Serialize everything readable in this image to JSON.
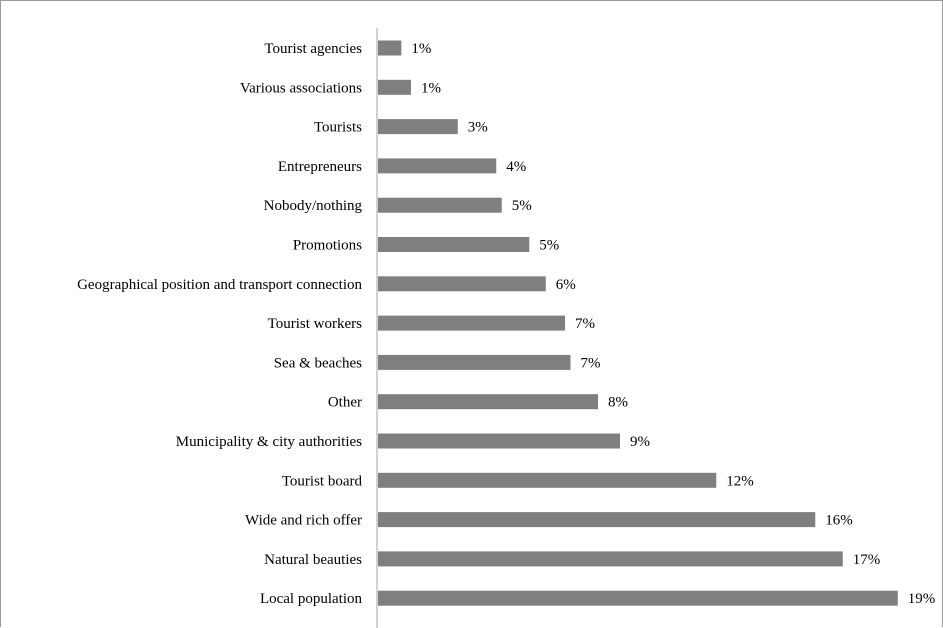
{
  "colors": {
    "bar": "#7f7f7f",
    "axis": "#a6a6a6",
    "frame": "#9a9a9a",
    "text": "#000000"
  },
  "chart_data": {
    "type": "bar",
    "orientation": "horizontal",
    "title": "",
    "xlabel": "",
    "ylabel": "",
    "xlim": [
      0,
      20
    ],
    "grid": false,
    "legend": "none",
    "categories": [
      "Tourist agencies",
      "Various associations",
      "Tourists",
      "Entrepreneurs",
      "Nobody/nothing",
      "Promotions",
      "Geographical position and transport connection",
      "Tourist workers",
      "Sea & beaches",
      "Other",
      "Municipality & city authorities",
      "Tourist board",
      "Wide and rich offer",
      "Natural beauties",
      "Local population"
    ],
    "values": [
      0.85,
      1.2,
      2.9,
      4.3,
      4.5,
      5.5,
      6.1,
      6.8,
      7.0,
      8.0,
      8.8,
      12.3,
      15.9,
      16.9,
      18.9
    ],
    "labels": [
      "1%",
      "1%",
      "3%",
      "4%",
      "5%",
      "5%",
      "6%",
      "7%",
      "7%",
      "8%",
      "9%",
      "12%",
      "16%",
      "17%",
      "19%"
    ]
  }
}
